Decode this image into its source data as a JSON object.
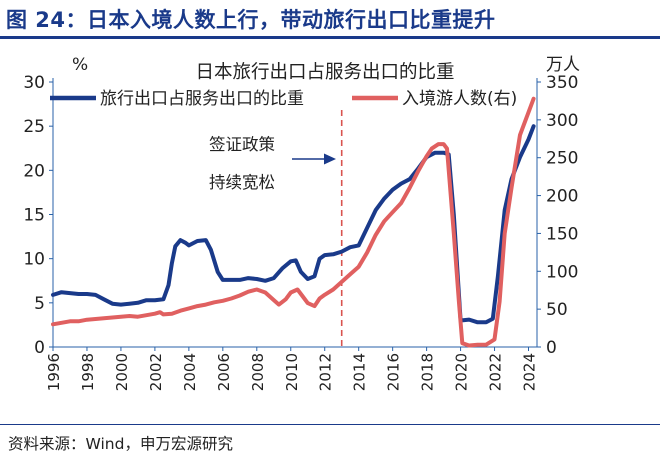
{
  "figure_title": "图 24：日本入境人数上行，带动旅行出口比重提升",
  "source": "资料来源：Wind，申万宏源研究",
  "chart_data": {
    "type": "line",
    "title": "日本旅行出口占服务出口的比重",
    "left_unit": "%",
    "right_unit": "万人",
    "x_ticks": [
      "1996",
      "1998",
      "2000",
      "2002",
      "2004",
      "2006",
      "2008",
      "2010",
      "2012",
      "2014",
      "2016",
      "2018",
      "2020",
      "2022",
      "2024"
    ],
    "xlim": [
      1996,
      2024.5
    ],
    "y_left": {
      "ticks": [
        "0",
        "5",
        "10",
        "15",
        "20",
        "25",
        "30"
      ],
      "lim": [
        0,
        30
      ]
    },
    "y_right": {
      "ticks": [
        "0",
        "50",
        "100",
        "150",
        "200",
        "250",
        "300",
        "350"
      ],
      "lim": [
        0,
        350
      ]
    },
    "annotation": {
      "lines": [
        "签证政策",
        "持续宽松"
      ],
      "x": 2013
    },
    "series": [
      {
        "name": "旅行出口占服务出口的比重",
        "axis": "left",
        "color": "#1a3a8a",
        "points": [
          [
            1996,
            5.9
          ],
          [
            1996.5,
            6.2
          ],
          [
            1997,
            6.1
          ],
          [
            1997.5,
            6.0
          ],
          [
            1998,
            6.0
          ],
          [
            1998.5,
            5.9
          ],
          [
            1999,
            5.4
          ],
          [
            1999.5,
            4.9
          ],
          [
            2000,
            4.8
          ],
          [
            2000.5,
            4.9
          ],
          [
            2001,
            5.0
          ],
          [
            2001.5,
            5.3
          ],
          [
            2002,
            5.3
          ],
          [
            2002.5,
            5.4
          ],
          [
            2002.8,
            7.0
          ],
          [
            2003,
            9.5
          ],
          [
            2003.2,
            11.4
          ],
          [
            2003.5,
            12.1
          ],
          [
            2003.8,
            11.8
          ],
          [
            2004,
            11.5
          ],
          [
            2004.5,
            12.0
          ],
          [
            2005,
            12.1
          ],
          [
            2005.3,
            11.0
          ],
          [
            2005.7,
            8.5
          ],
          [
            2006,
            7.6
          ],
          [
            2006.5,
            7.6
          ],
          [
            2007,
            7.6
          ],
          [
            2007.5,
            7.8
          ],
          [
            2008,
            7.7
          ],
          [
            2008.5,
            7.5
          ],
          [
            2009,
            7.8
          ],
          [
            2009.5,
            8.9
          ],
          [
            2010,
            9.7
          ],
          [
            2010.3,
            9.8
          ],
          [
            2010.6,
            8.5
          ],
          [
            2011,
            7.7
          ],
          [
            2011.4,
            8.0
          ],
          [
            2011.7,
            10.0
          ],
          [
            2012,
            10.4
          ],
          [
            2012.5,
            10.5
          ],
          [
            2013,
            10.8
          ],
          [
            2013.5,
            11.3
          ],
          [
            2014,
            11.5
          ],
          [
            2014.5,
            13.5
          ],
          [
            2015,
            15.5
          ],
          [
            2015.5,
            16.8
          ],
          [
            2016,
            17.8
          ],
          [
            2016.5,
            18.5
          ],
          [
            2017,
            19.0
          ],
          [
            2017.5,
            20.2
          ],
          [
            2018,
            21.5
          ],
          [
            2018.5,
            22.0
          ],
          [
            2019,
            22.0
          ],
          [
            2019.3,
            21.8
          ],
          [
            2019.6,
            15.0
          ],
          [
            2020,
            3.0
          ],
          [
            2020.5,
            3.1
          ],
          [
            2021,
            2.8
          ],
          [
            2021.5,
            2.8
          ],
          [
            2021.9,
            3.2
          ],
          [
            2022.2,
            8.0
          ],
          [
            2022.6,
            15.5
          ],
          [
            2023,
            19.0
          ],
          [
            2023.5,
            21.5
          ],
          [
            2024,
            23.5
          ],
          [
            2024.3,
            25.0
          ]
        ]
      },
      {
        "name": "入境游人数(右)",
        "axis": "right",
        "color": "#e06060",
        "points": [
          [
            1996,
            30
          ],
          [
            1996.5,
            32
          ],
          [
            1997,
            34
          ],
          [
            1997.5,
            34
          ],
          [
            1998,
            36
          ],
          [
            1998.5,
            37
          ],
          [
            1999,
            38
          ],
          [
            1999.5,
            39
          ],
          [
            2000,
            40
          ],
          [
            2000.5,
            41
          ],
          [
            2001,
            40
          ],
          [
            2001.5,
            42
          ],
          [
            2002,
            44
          ],
          [
            2002.3,
            46
          ],
          [
            2002.5,
            43
          ],
          [
            2003,
            44
          ],
          [
            2003.5,
            48
          ],
          [
            2004,
            51
          ],
          [
            2004.5,
            54
          ],
          [
            2005,
            56
          ],
          [
            2005.5,
            59
          ],
          [
            2006,
            61
          ],
          [
            2006.5,
            64
          ],
          [
            2007,
            68
          ],
          [
            2007.5,
            73
          ],
          [
            2008,
            76
          ],
          [
            2008.5,
            72
          ],
          [
            2009,
            62
          ],
          [
            2009.3,
            56
          ],
          [
            2009.7,
            63
          ],
          [
            2010,
            72
          ],
          [
            2010.4,
            76
          ],
          [
            2010.8,
            64
          ],
          [
            2011,
            58
          ],
          [
            2011.4,
            54
          ],
          [
            2011.7,
            64
          ],
          [
            2012,
            69
          ],
          [
            2012.5,
            76
          ],
          [
            2013,
            86
          ],
          [
            2013.5,
            96
          ],
          [
            2014,
            106
          ],
          [
            2014.5,
            125
          ],
          [
            2015,
            148
          ],
          [
            2015.5,
            166
          ],
          [
            2016,
            178
          ],
          [
            2016.5,
            190
          ],
          [
            2017,
            210
          ],
          [
            2017.5,
            232
          ],
          [
            2018,
            252
          ],
          [
            2018.3,
            262
          ],
          [
            2018.7,
            268
          ],
          [
            2019,
            268
          ],
          [
            2019.2,
            262
          ],
          [
            2019.6,
            150
          ],
          [
            2019.9,
            60
          ],
          [
            2020.1,
            5
          ],
          [
            2020.5,
            2
          ],
          [
            2021,
            3
          ],
          [
            2021.5,
            3
          ],
          [
            2022,
            10
          ],
          [
            2022.3,
            60
          ],
          [
            2022.6,
            150
          ],
          [
            2023,
            210
          ],
          [
            2023.5,
            280
          ],
          [
            2024,
            310
          ],
          [
            2024.3,
            328
          ]
        ]
      }
    ]
  }
}
